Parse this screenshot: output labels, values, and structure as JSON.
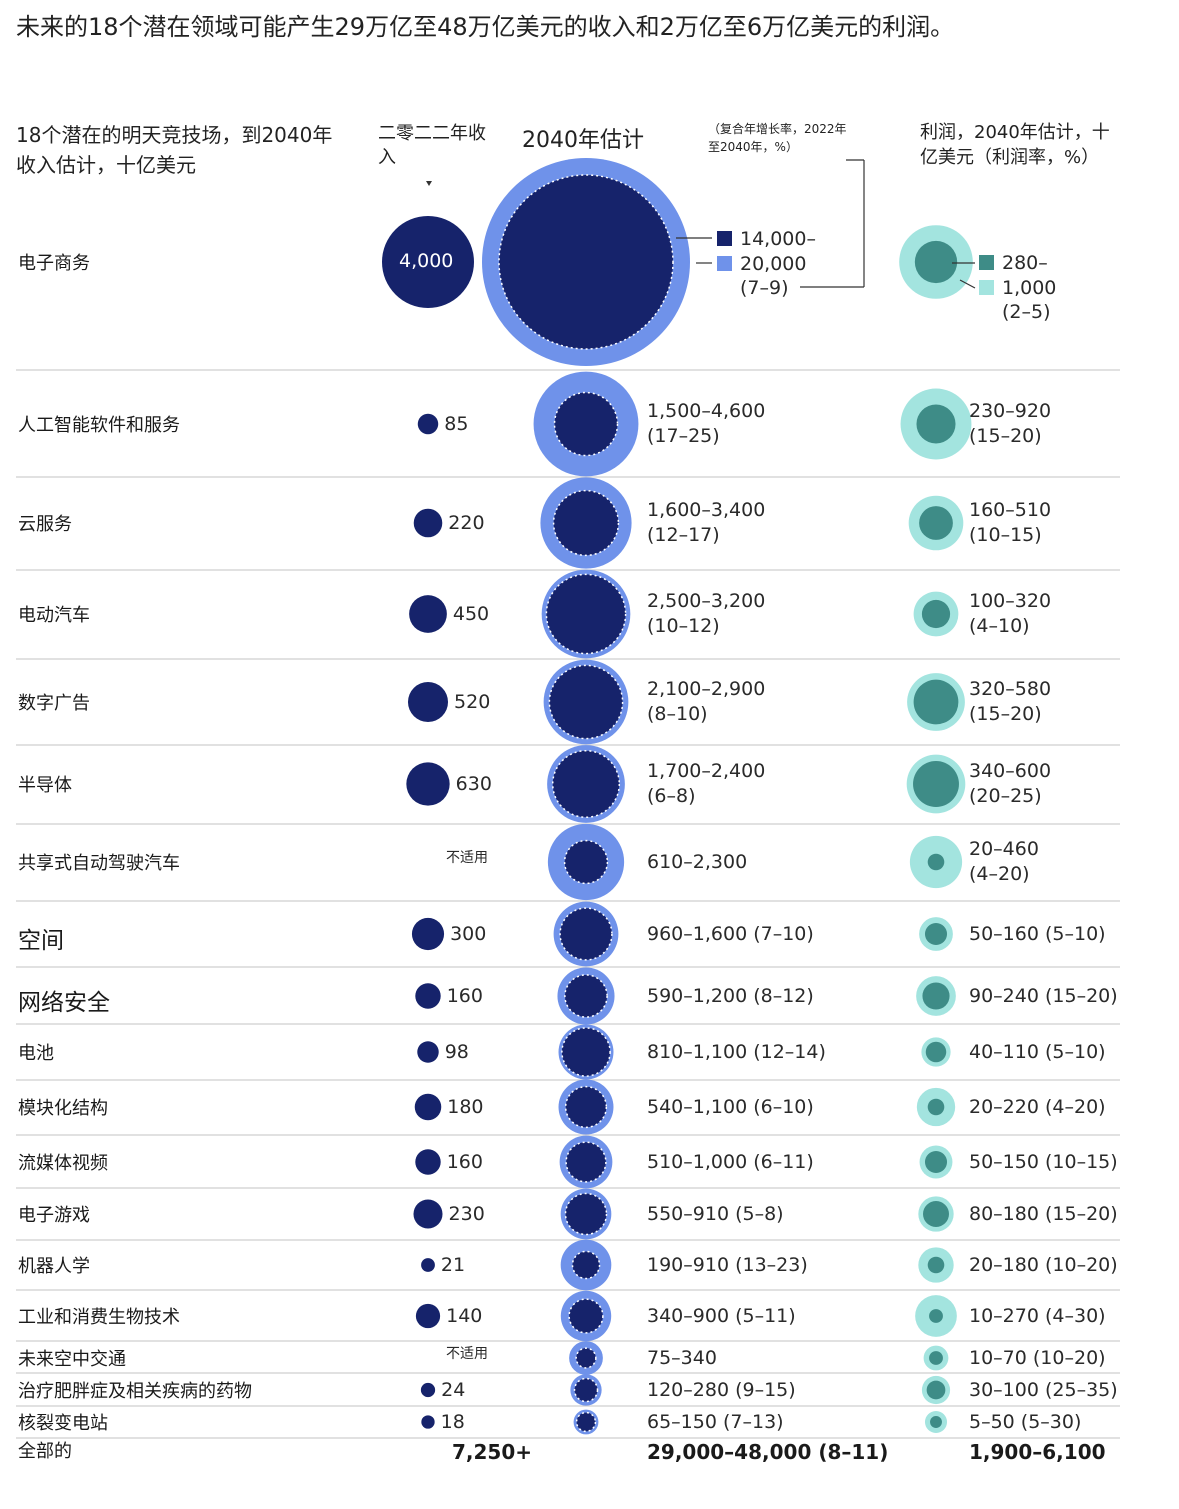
{
  "title": "未来的18个潜在领域可能产生29万亿至48万亿美元的收入和2万亿至6万亿美元的利润。",
  "headers": {
    "arena": "18个潜在的明天竞技场，到2040年收入估计，十亿美元",
    "rev2022": "二零二二年收入",
    "rev2040": "2040年估计",
    "cagr": "（复合年增长率，2022年至2040年，%）",
    "profit": "利润，2040年估计，十亿美元（利润率，%）"
  },
  "colors": {
    "navy": "#16236b",
    "blue": "#6f92ea",
    "teal": "#3e8c87",
    "mint": "#a3e4df",
    "grid": "#cfcfcf"
  },
  "chart_data": {
    "type": "bubble-table",
    "rows": [
      {
        "name": "电子商务",
        "rev2022": 4000,
        "rev2022_label": "4,000",
        "rev2040_low": 14000,
        "rev2040_high": 20000,
        "rev2040_label": "14,000–20,000",
        "cagr": "(7–9)",
        "profit_low": 280,
        "profit_high": 1000,
        "profit_label": "280–1,000",
        "margin": "(2–5)"
      },
      {
        "name": "人工智能软件和服务",
        "rev2022": 85,
        "rev2022_label": "85",
        "rev2040_low": 1500,
        "rev2040_high": 4600,
        "rev2040_label": "1,500–4,600",
        "cagr": "(17–25)",
        "profit_low": 230,
        "profit_high": 920,
        "profit_label": "230–920",
        "margin": "(15–20)"
      },
      {
        "name": "云服务",
        "rev2022": 220,
        "rev2022_label": "220",
        "rev2040_low": 1600,
        "rev2040_high": 3400,
        "rev2040_label": "1,600–3,400",
        "cagr": "(12–17)",
        "profit_low": 160,
        "profit_high": 510,
        "profit_label": "160–510",
        "margin": "(10–15)"
      },
      {
        "name": "电动汽车",
        "rev2022": 450,
        "rev2022_label": "450",
        "rev2040_low": 2500,
        "rev2040_high": 3200,
        "rev2040_label": "2,500–3,200",
        "cagr": "(10–12)",
        "profit_low": 100,
        "profit_high": 320,
        "profit_label": "100–320",
        "margin": "(4–10)"
      },
      {
        "name": "数字广告",
        "rev2022": 520,
        "rev2022_label": "520",
        "rev2040_low": 2100,
        "rev2040_high": 2900,
        "rev2040_label": "2,100–2,900",
        "cagr": "(8–10)",
        "profit_low": 320,
        "profit_high": 580,
        "profit_label": "320–580",
        "margin": "(15–20)"
      },
      {
        "name": "半导体",
        "rev2022": 630,
        "rev2022_label": "630",
        "rev2040_low": 1700,
        "rev2040_high": 2400,
        "rev2040_label": "1,700–2,400",
        "cagr": "(6–8)",
        "profit_low": 340,
        "profit_high": 600,
        "profit_label": "340–600",
        "margin": "(20–25)"
      },
      {
        "name": "共享式自动驾驶汽车",
        "rev2022": null,
        "rev2022_label": "不适用",
        "rev2040_low": 610,
        "rev2040_high": 2300,
        "rev2040_label": "610–2,300",
        "cagr": "",
        "profit_low": 20,
        "profit_high": 460,
        "profit_label": "20–460",
        "margin": "(4–20)"
      },
      {
        "name": "空间",
        "rev2022": 300,
        "rev2022_label": "300",
        "rev2040_low": 960,
        "rev2040_high": 1600,
        "rev2040_label": "960–1,600 (7–10)",
        "cagr": "",
        "profit_low": 50,
        "profit_high": 160,
        "profit_label": "50–160 (5–10)",
        "margin": ""
      },
      {
        "name": "网络安全",
        "rev2022": 160,
        "rev2022_label": "160",
        "rev2040_low": 590,
        "rev2040_high": 1200,
        "rev2040_label": "590–1,200 (8–12)",
        "cagr": "",
        "profit_low": 90,
        "profit_high": 240,
        "profit_label": "90–240 (15–20)",
        "margin": ""
      },
      {
        "name": "电池",
        "rev2022": 98,
        "rev2022_label": "98",
        "rev2040_low": 810,
        "rev2040_high": 1100,
        "rev2040_label": "810–1,100 (12–14)",
        "cagr": "",
        "profit_low": 40,
        "profit_high": 110,
        "profit_label": "40–110 (5–10)",
        "margin": ""
      },
      {
        "name": "模块化结构",
        "rev2022": 180,
        "rev2022_label": "180",
        "rev2040_low": 540,
        "rev2040_high": 1100,
        "rev2040_label": "540–1,100 (6–10)",
        "cagr": "",
        "profit_low": 20,
        "profit_high": 220,
        "profit_label": "20–220 (4–20)",
        "margin": ""
      },
      {
        "name": "流媒体视频",
        "rev2022": 160,
        "rev2022_label": "160",
        "rev2040_low": 510,
        "rev2040_high": 1000,
        "rev2040_label": "510–1,000 (6–11)",
        "cagr": "",
        "profit_low": 50,
        "profit_high": 150,
        "profit_label": "50–150 (10–15)",
        "margin": ""
      },
      {
        "name": "电子游戏",
        "rev2022": 230,
        "rev2022_label": "230",
        "rev2040_low": 550,
        "rev2040_high": 910,
        "rev2040_label": "550–910 (5–8)",
        "cagr": "",
        "profit_low": 80,
        "profit_high": 180,
        "profit_label": "80–180 (15–20)",
        "margin": ""
      },
      {
        "name": "机器人学",
        "rev2022": 21,
        "rev2022_label": "21",
        "rev2040_low": 190,
        "rev2040_high": 910,
        "rev2040_label": "190–910 (13–23)",
        "cagr": "",
        "profit_low": 20,
        "profit_high": 180,
        "profit_label": "20–180 (10–20)",
        "margin": ""
      },
      {
        "name": "工业和消费生物技术",
        "rev2022": 140,
        "rev2022_label": "140",
        "rev2040_low": 340,
        "rev2040_high": 900,
        "rev2040_label": "340–900 (5–11)",
        "cagr": "",
        "profit_low": 10,
        "profit_high": 270,
        "profit_label": "10–270 (4–30)",
        "margin": ""
      },
      {
        "name": "未来空中交通",
        "rev2022": null,
        "rev2022_label": "不适用",
        "rev2040_low": 75,
        "rev2040_high": 340,
        "rev2040_label": "75–340",
        "cagr": "",
        "profit_low": 10,
        "profit_high": 70,
        "profit_label": "10–70 (10–20)",
        "margin": ""
      },
      {
        "name": "治疗肥胖症及相关疾病的药物",
        "rev2022": 24,
        "rev2022_label": "24",
        "rev2040_low": 120,
        "rev2040_high": 280,
        "rev2040_label": "120–280 (9–15)",
        "cagr": "",
        "profit_low": 30,
        "profit_high": 100,
        "profit_label": "30–100 (25–35)",
        "margin": ""
      },
      {
        "name": "核裂变电站",
        "rev2022": 18,
        "rev2022_label": "18",
        "rev2040_low": 65,
        "rev2040_high": 150,
        "rev2040_label": "65–150 (7–13)",
        "cagr": "",
        "profit_low": 5,
        "profit_high": 50,
        "profit_label": "5–50 (5–30)",
        "margin": ""
      }
    ],
    "total": {
      "name": "全部的",
      "rev2022": "7,250+",
      "rev2040": "29,000–48,000 (8–11)",
      "profit": "1,900–6,100"
    }
  }
}
